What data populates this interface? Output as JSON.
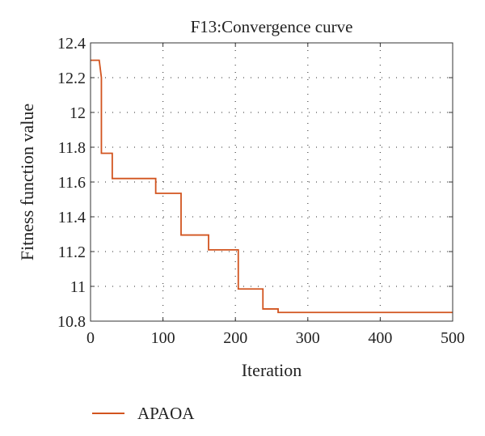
{
  "chart_data": {
    "type": "line",
    "title": "F13:Convergence curve",
    "xlabel": "Iteration",
    "ylabel": "Fitness function value",
    "xlim": [
      0,
      500
    ],
    "ylim": [
      10.8,
      12.4
    ],
    "x_ticks": [
      "0",
      "100",
      "200",
      "300",
      "400",
      "500"
    ],
    "y_ticks": [
      "10.8",
      "11",
      "11.2",
      "11.4",
      "11.6",
      "11.8",
      "12",
      "12.2",
      "12.4"
    ],
    "x_tick_values": [
      0,
      100,
      200,
      300,
      400,
      500
    ],
    "y_tick_values": [
      10.8,
      11.0,
      11.2,
      11.4,
      11.6,
      11.8,
      12.0,
      12.2,
      12.4
    ],
    "grid": true,
    "legend_position": "bottom-left",
    "series": [
      {
        "name": "APAOA",
        "color": "#d2541f",
        "x": [
          0,
          12,
          15,
          15,
          30,
          30,
          90,
          90,
          125,
          125,
          163,
          163,
          204,
          204,
          238,
          238,
          259,
          259,
          500
        ],
        "y": [
          12.3,
          12.3,
          12.2,
          11.765,
          11.765,
          11.62,
          11.62,
          11.535,
          11.535,
          11.295,
          11.295,
          11.21,
          11.21,
          10.985,
          10.985,
          10.87,
          10.87,
          10.85,
          10.85
        ]
      }
    ]
  }
}
